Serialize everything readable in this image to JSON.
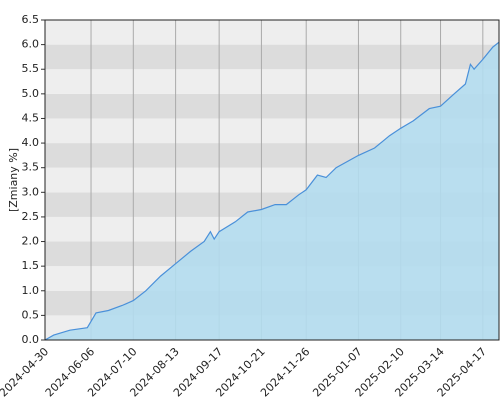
{
  "chart_data": {
    "type": "area",
    "y_label": "[Zmiany %]",
    "x": [
      "2024-04-30",
      "2024-05-07",
      "2024-05-20",
      "2024-06-03",
      "2024-06-10",
      "2024-06-20",
      "2024-07-01",
      "2024-07-10",
      "2024-07-20",
      "2024-08-01",
      "2024-08-13",
      "2024-08-25",
      "2024-09-05",
      "2024-09-10",
      "2024-09-13",
      "2024-09-17",
      "2024-09-30",
      "2024-10-10",
      "2024-10-21",
      "2024-11-01",
      "2024-11-10",
      "2024-11-20",
      "2024-11-26",
      "2024-12-05",
      "2024-12-12",
      "2024-12-20",
      "2025-01-07",
      "2025-01-20",
      "2025-02-01",
      "2025-02-10",
      "2025-02-20",
      "2025-03-05",
      "2025-03-14",
      "2025-03-25",
      "2025-04-03",
      "2025-04-07",
      "2025-04-10",
      "2025-04-17",
      "2025-04-25",
      "2025-04-30"
    ],
    "values": [
      0.0,
      0.1,
      0.2,
      0.25,
      0.55,
      0.6,
      0.7,
      0.8,
      1.0,
      1.3,
      1.55,
      1.8,
      2.0,
      2.2,
      2.05,
      2.2,
      2.4,
      2.6,
      2.65,
      2.75,
      2.75,
      2.95,
      3.05,
      3.35,
      3.3,
      3.5,
      3.75,
      3.9,
      4.15,
      4.3,
      4.45,
      4.7,
      4.75,
      5.0,
      5.2,
      5.6,
      5.5,
      5.7,
      5.95,
      6.05
    ],
    "color": "#4a90d9",
    "fill": "#b3dcee",
    "xlim": [
      "2024-04-30",
      "2025-04-30"
    ],
    "xticks": [
      "2024-04-30",
      "2024-06-06",
      "2024-07-10",
      "2024-08-13",
      "2024-09-17",
      "2024-10-21",
      "2024-11-26",
      "2025-01-07",
      "2025-02-10",
      "2025-03-14",
      "2025-04-17"
    ],
    "ylim": [
      0,
      6.5
    ],
    "yticks": [
      {
        "value": 0,
        "label": "0.0"
      },
      0.5,
      {
        "value": 1,
        "label": "1.0"
      },
      1.5,
      {
        "value": 2,
        "label": "2.0"
      },
      2.5,
      {
        "value": 3,
        "label": "3.0"
      },
      3.5,
      {
        "value": 4,
        "label": "4.0"
      },
      4.5,
      {
        "value": 5,
        "label": "5.0"
      },
      5.5,
      {
        "value": 6,
        "label": "6.0"
      },
      6.5
    ],
    "grid": true
  }
}
